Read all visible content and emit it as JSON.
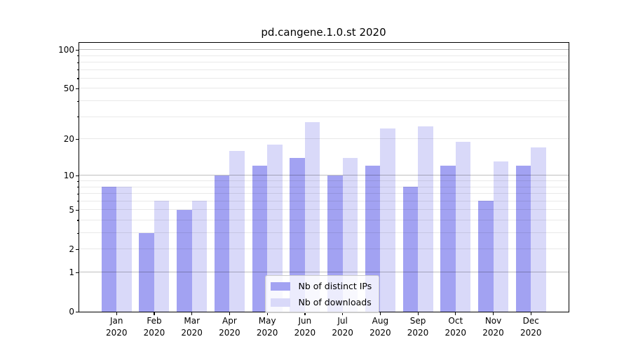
{
  "title": "pd.cangene.1.0.st 2020",
  "colors": {
    "distinct_ips_bar": "#a2a2f2",
    "downloads_bar": "#d9d9f9",
    "spine": "#000000",
    "major_grid": "#bfbfbf",
    "minor_grid": "#e9e9e9",
    "legend_border": "#cccccc"
  },
  "chart_data": {
    "type": "bar",
    "title": "pd.cangene.1.0.st 2020",
    "categories": [
      "Jan",
      "Feb",
      "Mar",
      "Apr",
      "May",
      "Jun",
      "Jul",
      "Aug",
      "Sep",
      "Oct",
      "Nov",
      "Dec"
    ],
    "year": "2020",
    "series": [
      {
        "name": "Nb of distinct IPs",
        "color": "#a2a2f2",
        "values": [
          8,
          3,
          5,
          10,
          12,
          14,
          10,
          12,
          8,
          12,
          6,
          12
        ]
      },
      {
        "name": "Nb of downloads",
        "color": "#d9d9f9",
        "values": [
          8,
          6,
          6,
          16,
          18,
          27,
          14,
          24,
          25,
          19,
          13,
          17
        ]
      }
    ],
    "xlabel": "",
    "ylabel": "",
    "yscale": "log1p (y position proportional to log10(1+value))",
    "ylim": [
      0,
      113
    ],
    "yticks_labeled": [
      0,
      1,
      2,
      5,
      10,
      20,
      50,
      100
    ],
    "yticks_minor": [
      3,
      4,
      6,
      7,
      8,
      9,
      30,
      40,
      60,
      70,
      80,
      90
    ],
    "grid": "horizontal; darker lines at 1,10,100; light lines at 2-9,20-90",
    "legend_position": "inside, lower center"
  },
  "legend": {
    "items": [
      {
        "label": "Nb of distinct IPs"
      },
      {
        "label": "Nb of downloads"
      }
    ]
  }
}
